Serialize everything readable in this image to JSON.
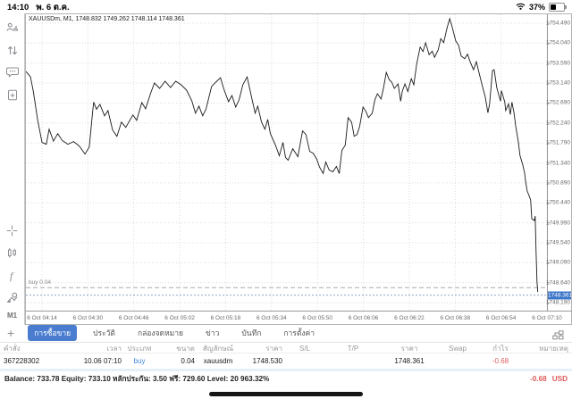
{
  "status_bar": {
    "time": "14:10",
    "date": "พ. 6 ต.ค.",
    "battery_percent": "37%"
  },
  "sidebar": {
    "top_icons": [
      {
        "name": "quotes-icon"
      },
      {
        "name": "trade-icon"
      },
      {
        "name": "chat-icon"
      },
      {
        "name": "new-order-icon"
      }
    ],
    "bottom_icons": [
      {
        "name": "crosshair-icon"
      },
      {
        "name": "candlestick-icon"
      },
      {
        "name": "indicators-icon"
      },
      {
        "name": "objects-icon"
      }
    ],
    "timeframe_label": "M1"
  },
  "chart": {
    "header": "XAUUSDm, M1, 1748.832 1749.262 1748.114 1748.361"
  },
  "chart_data": {
    "type": "line",
    "title": "XAUUSDm, M1, 1748.832 1749.262 1748.114 1748.361",
    "symbol": "XAUUSDm",
    "timeframe": "M1",
    "ohlc": {
      "open": "1748.832",
      "high": "1749.262",
      "low": "1748.114",
      "close": "1748.361"
    },
    "x_range_minutes": [
      8.4,
      190
    ],
    "y_range": [
      1747.99,
      1754.69
    ],
    "grid": true,
    "x_ticks": [
      {
        "t": 14,
        "label": "6 Oct 04:14"
      },
      {
        "t": 30,
        "label": "6 Oct 04:30"
      },
      {
        "t": 46,
        "label": "6 Oct 04:46"
      },
      {
        "t": 62,
        "label": "6 Oct 05:02"
      },
      {
        "t": 78,
        "label": "6 Oct 05:18"
      },
      {
        "t": 94,
        "label": "6 Oct 05:34"
      },
      {
        "t": 110,
        "label": "6 Oct 05:50"
      },
      {
        "t": 126,
        "label": "6 Oct 06:06"
      },
      {
        "t": 142,
        "label": "6 Oct 06:22"
      },
      {
        "t": 158,
        "label": "6 Oct 06:38"
      },
      {
        "t": 174,
        "label": "6 Oct 06:54"
      },
      {
        "t": 190,
        "label": "6 Oct 07:10"
      }
    ],
    "y_ticks": [
      "1754.490",
      "1754.040",
      "1753.590",
      "1753.140",
      "1752.690",
      "1752.240",
      "1751.790",
      "1751.340",
      "1750.890",
      "1750.440",
      "1749.990",
      "1749.540",
      "1749.090",
      "1748.640",
      "1748.190"
    ],
    "bid_price": 1748.361,
    "bid_label": "1748.361",
    "position_line": {
      "label": "buy 0.04",
      "price": 1748.53
    },
    "line_color": "#1a1a1a",
    "grid_color": "#dcdcdc",
    "bid_box_color": "#3b76c9",
    "series": [
      [
        8.4,
        1753.4
      ],
      [
        10,
        1753.28
      ],
      [
        11,
        1752.95
      ],
      [
        12.5,
        1752.3
      ],
      [
        14,
        1751.8
      ],
      [
        15.5,
        1751.76
      ],
      [
        16.5,
        1752.1
      ],
      [
        18,
        1751.83
      ],
      [
        19.5,
        1752.0
      ],
      [
        21,
        1751.85
      ],
      [
        23,
        1751.76
      ],
      [
        25,
        1751.82
      ],
      [
        27,
        1751.72
      ],
      [
        29,
        1751.54
      ],
      [
        30.5,
        1751.7
      ],
      [
        31.5,
        1752.4
      ],
      [
        32,
        1752.71
      ],
      [
        33,
        1752.55
      ],
      [
        34.2,
        1752.66
      ],
      [
        35.8,
        1752.4
      ],
      [
        37,
        1752.52
      ],
      [
        38.6,
        1752.08
      ],
      [
        40.1,
        1751.94
      ],
      [
        41.7,
        1752.26
      ],
      [
        43.2,
        1752.14
      ],
      [
        45.7,
        1752.42
      ],
      [
        47,
        1752.3
      ],
      [
        48.8,
        1752.7
      ],
      [
        50.1,
        1752.56
      ],
      [
        51.9,
        1752.92
      ],
      [
        53.2,
        1753.14
      ],
      [
        55,
        1753.02
      ],
      [
        56.9,
        1753.18
      ],
      [
        58.8,
        1753.04
      ],
      [
        60.6,
        1753.18
      ],
      [
        62.5,
        1753.1
      ],
      [
        64.4,
        1752.98
      ],
      [
        66.2,
        1752.74
      ],
      [
        67.5,
        1752.46
      ],
      [
        68.7,
        1752.62
      ],
      [
        70,
        1752.4
      ],
      [
        71.2,
        1752.56
      ],
      [
        73.1,
        1753.06
      ],
      [
        74.6,
        1753.16
      ],
      [
        76.2,
        1753.26
      ],
      [
        77.4,
        1753.0
      ],
      [
        79,
        1752.72
      ],
      [
        80.2,
        1752.86
      ],
      [
        81.5,
        1752.6
      ],
      [
        82.7,
        1752.76
      ],
      [
        84,
        1753.1
      ],
      [
        85.5,
        1753.28
      ],
      [
        87.1,
        1752.8
      ],
      [
        88.3,
        1752.46
      ],
      [
        89.2,
        1752.62
      ],
      [
        90.5,
        1752.26
      ],
      [
        91.7,
        1752.1
      ],
      [
        92.7,
        1752.32
      ],
      [
        93.6,
        1752.0
      ],
      [
        95.5,
        1751.72
      ],
      [
        96.7,
        1751.5
      ],
      [
        98,
        1751.8
      ],
      [
        98.9,
        1751.46
      ],
      [
        99.8,
        1751.4
      ],
      [
        101.4,
        1751.66
      ],
      [
        103.2,
        1751.48
      ],
      [
        104.8,
        1752.06
      ],
      [
        106,
        1751.98
      ],
      [
        107.3,
        1751.6
      ],
      [
        108.5,
        1751.56
      ],
      [
        109.8,
        1751.42
      ],
      [
        110.7,
        1751.25
      ],
      [
        112,
        1751.1
      ],
      [
        112.9,
        1751.36
      ],
      [
        114.1,
        1751.18
      ],
      [
        115.4,
        1751.14
      ],
      [
        116.6,
        1751.26
      ],
      [
        117.6,
        1751.1
      ],
      [
        118.5,
        1751.62
      ],
      [
        119.7,
        1751.74
      ],
      [
        120.7,
        1752.36
      ],
      [
        121.9,
        1752.26
      ],
      [
        122.8,
        1751.94
      ],
      [
        123.8,
        1751.98
      ],
      [
        124.7,
        1752.16
      ],
      [
        125.9,
        1752.6
      ],
      [
        126.9,
        1752.5
      ],
      [
        127.8,
        1752.36
      ],
      [
        129.1,
        1752.46
      ],
      [
        130,
        1752.76
      ],
      [
        130.9,
        1752.9
      ],
      [
        132.2,
        1752.78
      ],
      [
        133.1,
        1753.05
      ],
      [
        134,
        1753.38
      ],
      [
        135,
        1753.22
      ],
      [
        135.9,
        1753.16
      ],
      [
        136.8,
        1753.02
      ],
      [
        138.1,
        1753.12
      ],
      [
        139,
        1752.73
      ],
      [
        139.6,
        1752.96
      ],
      [
        140.5,
        1753.12
      ],
      [
        141.5,
        1752.95
      ],
      [
        142.7,
        1753.24
      ],
      [
        143.6,
        1753.1
      ],
      [
        144.6,
        1753.58
      ],
      [
        145.8,
        1753.95
      ],
      [
        146.8,
        1753.85
      ],
      [
        147.7,
        1754.05
      ],
      [
        148.9,
        1753.78
      ],
      [
        150,
        1753.86
      ],
      [
        150.8,
        1753.72
      ],
      [
        152.1,
        1753.89
      ],
      [
        153,
        1754.14
      ],
      [
        154,
        1754.05
      ],
      [
        155.2,
        1754.39
      ],
      [
        156.1,
        1754.59
      ],
      [
        157,
        1754.39
      ],
      [
        158.2,
        1754.09
      ],
      [
        159.2,
        1753.99
      ],
      [
        160.1,
        1753.75
      ],
      [
        161.3,
        1753.69
      ],
      [
        162.3,
        1753.79
      ],
      [
        163.2,
        1753.62
      ],
      [
        164.4,
        1753.44
      ],
      [
        165.4,
        1753.62
      ],
      [
        166.3,
        1753.38
      ],
      [
        167.6,
        1753.04
      ],
      [
        168.5,
        1752.82
      ],
      [
        169.4,
        1752.47
      ],
      [
        170,
        1752.67
      ],
      [
        171,
        1753.42
      ],
      [
        171.6,
        1753.44
      ],
      [
        172.5,
        1753.04
      ],
      [
        173.8,
        1752.73
      ],
      [
        174.1,
        1752.97
      ],
      [
        175.3,
        1752.71
      ],
      [
        175.6,
        1752.52
      ],
      [
        176.6,
        1752.67
      ],
      [
        177.2,
        1752.43
      ],
      [
        177.8,
        1752.71
      ],
      [
        178.5,
        1752.47
      ],
      [
        179.1,
        1752.17
      ],
      [
        180,
        1751.82
      ],
      [
        180.6,
        1751.51
      ],
      [
        181.6,
        1751.29
      ],
      [
        182.2,
        1751.11
      ],
      [
        182.5,
        1750.95
      ],
      [
        183.1,
        1750.71
      ],
      [
        183.7,
        1750.61
      ],
      [
        184.3,
        1750.51
      ],
      [
        184.7,
        1750.08
      ],
      [
        185.6,
        1750.04
      ],
      [
        185.9,
        1750.14
      ],
      [
        186.2,
        1749.34
      ],
      [
        186.5,
        1748.67
      ],
      [
        186.8,
        1748.43
      ]
    ]
  },
  "tab_bar": {
    "add_label": "+",
    "tabs": [
      {
        "label": "การซื้อขาย",
        "selected": true
      },
      {
        "label": "ประวัติ",
        "selected": false
      },
      {
        "label": "กล่องจดหมาย",
        "selected": false
      },
      {
        "label": "ข่าว",
        "selected": false
      },
      {
        "label": "บันทึก",
        "selected": false
      },
      {
        "label": "การตั้งค่า",
        "selected": false
      }
    ]
  },
  "trade_table": {
    "headers": [
      "คำสั่ง",
      "เวลา",
      "ประเภท",
      "ขนาด",
      "สัญลักษณ์",
      "ราคา",
      "S/L",
      "T/P",
      "ราคา",
      "Swap",
      "กำไร",
      "หมายเหตุ"
    ],
    "row": {
      "order": "367228302",
      "time": "10.06 07:10",
      "type": "buy",
      "volume": "0.04",
      "symbol": "xauusdm",
      "open_price": "1748.530",
      "sl": "",
      "tp": "",
      "current_price": "1748.361",
      "swap": "",
      "profit": "-0.68",
      "comment": ""
    }
  },
  "footer": {
    "balance_line": "Balance: 733.78 Equity: 733.10 หลักประกัน: 3.50 ฟรี: 729.60 Level: 20 963.32%",
    "profit": "-0.68",
    "currency": "USD"
  }
}
